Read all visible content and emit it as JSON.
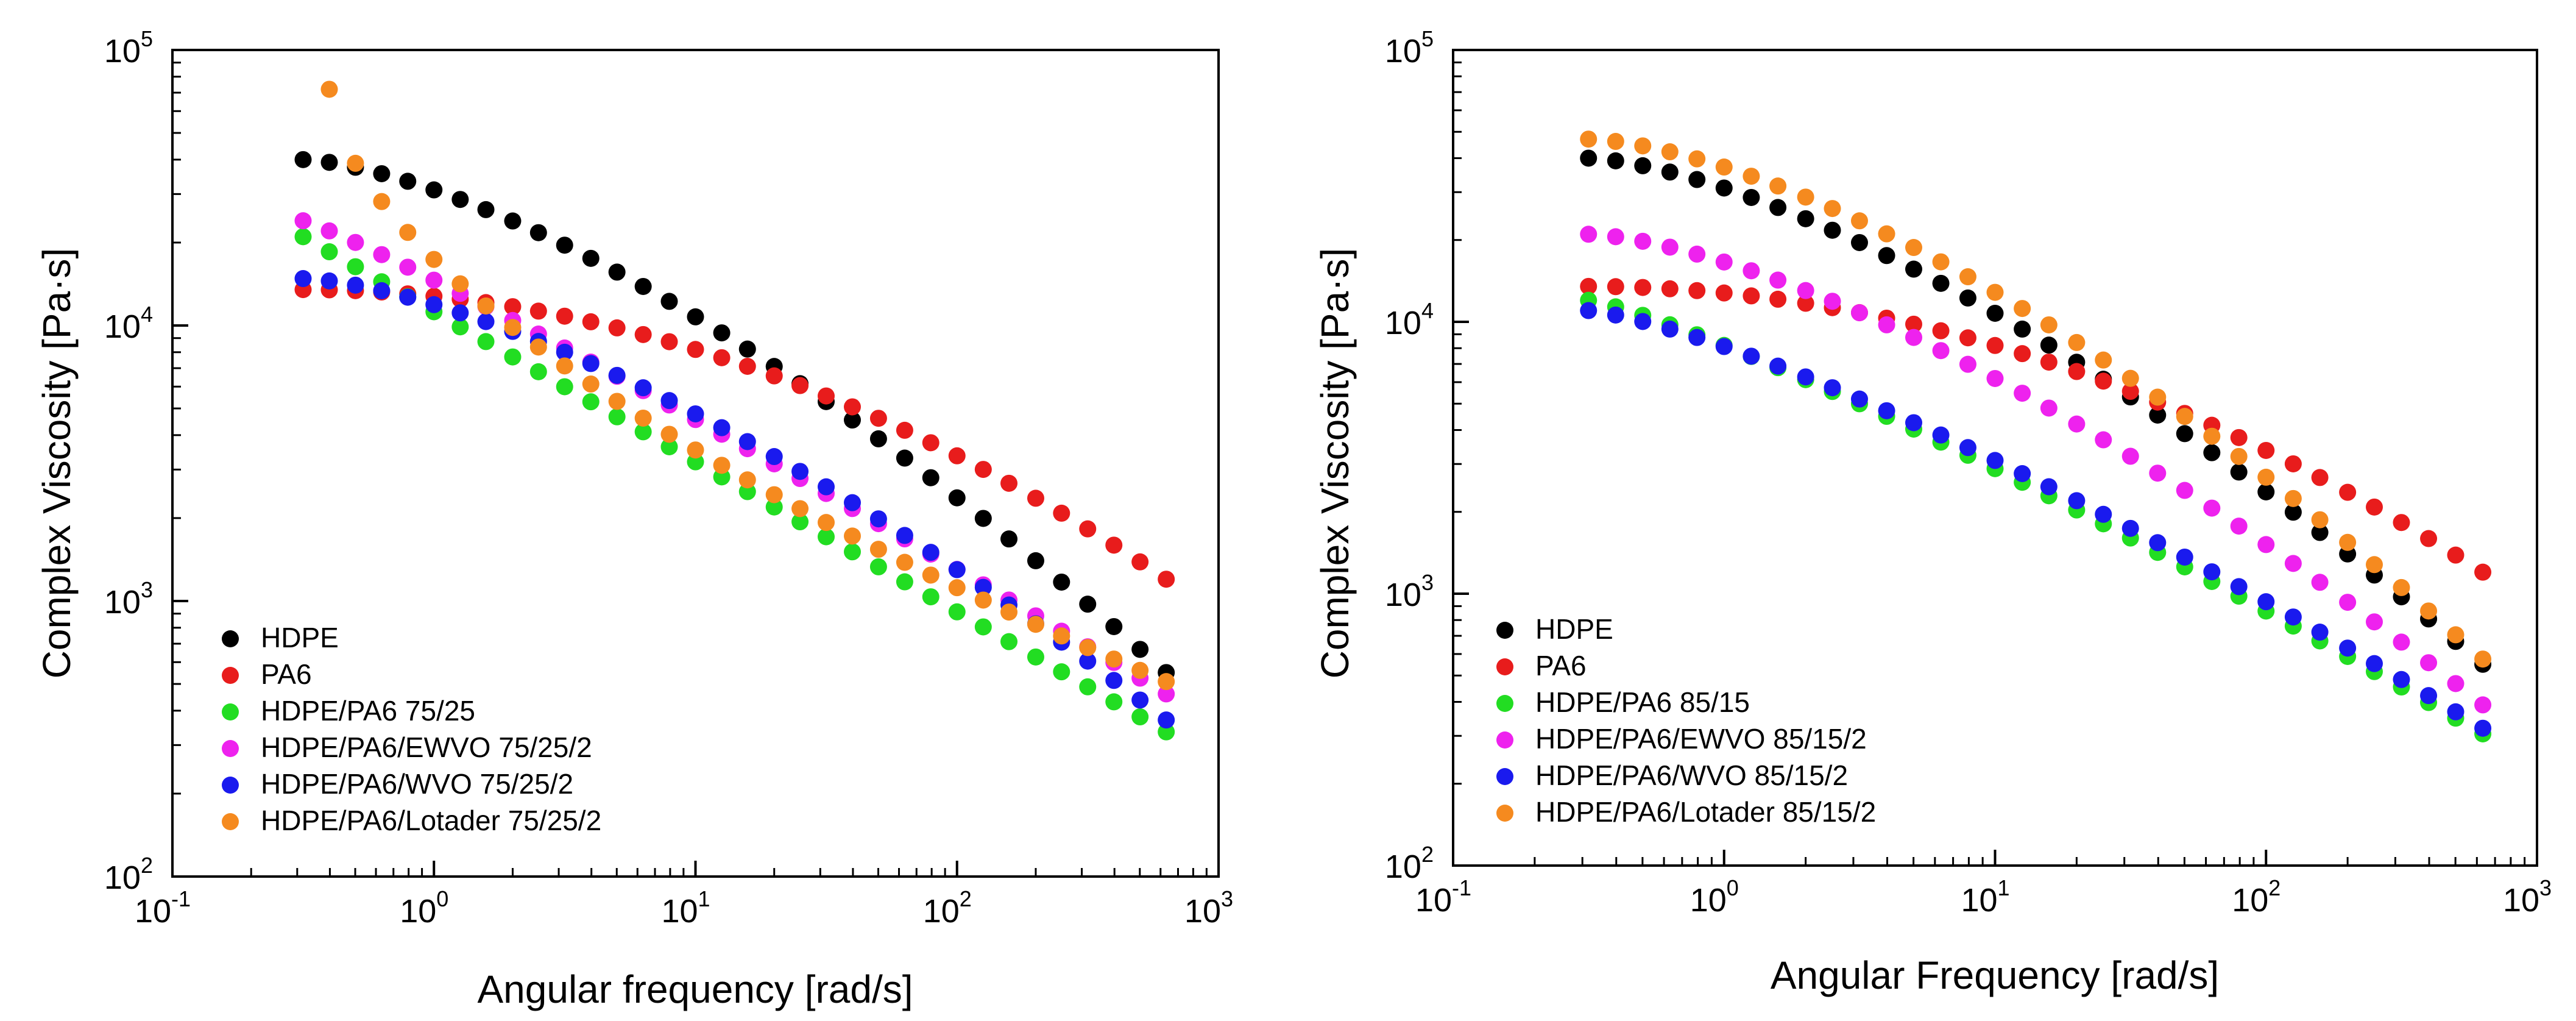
{
  "chart_data": [
    {
      "type": "scatter",
      "xscale": "log",
      "yscale": "log",
      "xlim": [
        0.1,
        1000
      ],
      "ylim": [
        100,
        100000
      ],
      "xlabel": "Angular frequency [rad/s]",
      "ylabel": "Complex Viscosity [Pa·s]",
      "xticks": [
        {
          "base": "10",
          "exp": "-1"
        },
        {
          "base": "10",
          "exp": "0"
        },
        {
          "base": "10",
          "exp": "1"
        },
        {
          "base": "10",
          "exp": "2"
        },
        {
          "base": "10",
          "exp": "3"
        }
      ],
      "yticks": [
        {
          "base": "10",
          "exp": "2"
        },
        {
          "base": "10",
          "exp": "3"
        },
        {
          "base": "10",
          "exp": "4"
        },
        {
          "base": "10",
          "exp": "5"
        }
      ],
      "legend_position": "bottom-left",
      "x": [
        0.316,
        0.398,
        0.501,
        0.631,
        0.794,
        1.0,
        1.26,
        1.58,
        2.0,
        2.51,
        3.16,
        3.98,
        5.01,
        6.31,
        7.94,
        10.0,
        12.6,
        15.8,
        20.0,
        25.1,
        31.6,
        39.8,
        50.1,
        63.1,
        79.4,
        100,
        126,
        158,
        200,
        251,
        316,
        398,
        501,
        631
      ],
      "series": [
        {
          "name": "HDPE",
          "color": "#000000",
          "x_start": 0.316,
          "x_end": 631,
          "y_start": 40000,
          "y_end": 550,
          "exp": 1.5
        },
        {
          "name": "PA6",
          "color": "#e81c1c",
          "x_start": 0.316,
          "x_end": 631,
          "y_start": 13500,
          "y_end": 1200,
          "exp": 2.0
        },
        {
          "name": "HDPE/PA6 75/25",
          "color": "#22dd22",
          "x_start": 0.316,
          "x_end": 631,
          "y_start": 21000,
          "y_end": 335,
          "exp": 1.0
        },
        {
          "name": "HDPE/PA6/EWVO 75/25/2",
          "color": "#ee22ee",
          "x_start": 0.316,
          "x_end": 631,
          "y_start": 24000,
          "y_end": 460,
          "exp": 1.1
        },
        {
          "name": "HDPE/PA6/WVO 75/25/2",
          "color": "#1a1aee",
          "x_start": 0.316,
          "x_end": 631,
          "y_start": 14800,
          "y_end": 370,
          "exp": 1.5
        },
        {
          "name": "HDPE/PA6/Lotader 75/25/2",
          "color": "#f58a1f",
          "x_start": 0.398,
          "x_end": 631,
          "y_start": 72000,
          "y_end": 510,
          "exp": 0.6
        }
      ]
    },
    {
      "type": "scatter",
      "xscale": "log",
      "yscale": "log",
      "xlim": [
        0.1,
        1000
      ],
      "ylim": [
        100,
        100000
      ],
      "xlabel": "Angular Frequency [rad/s]",
      "ylabel": "Complex Viscosity [Pa·s]",
      "xticks": [
        {
          "base": "10",
          "exp": "-1"
        },
        {
          "base": "10",
          "exp": "0"
        },
        {
          "base": "10",
          "exp": "1"
        },
        {
          "base": "10",
          "exp": "2"
        },
        {
          "base": "10",
          "exp": "3"
        }
      ],
      "yticks": [
        {
          "base": "10",
          "exp": "2"
        },
        {
          "base": "10",
          "exp": "3"
        },
        {
          "base": "10",
          "exp": "4"
        },
        {
          "base": "10",
          "exp": "5"
        }
      ],
      "legend_position": "bottom-left",
      "x": [
        0.316,
        0.398,
        0.501,
        0.631,
        0.794,
        1.0,
        1.26,
        1.58,
        2.0,
        2.51,
        3.16,
        3.98,
        5.01,
        6.31,
        7.94,
        10.0,
        12.6,
        15.8,
        20.0,
        25.1,
        31.6,
        39.8,
        50.1,
        63.1,
        79.4,
        100,
        126,
        158,
        200,
        251,
        316,
        398,
        501,
        631
      ],
      "series": [
        {
          "name": "HDPE",
          "color": "#000000",
          "x_start": 0.316,
          "x_end": 631,
          "y_start": 40000,
          "y_end": 550,
          "exp": 1.5
        },
        {
          "name": "PA6",
          "color": "#e81c1c",
          "x_start": 0.316,
          "x_end": 631,
          "y_start": 13500,
          "y_end": 1200,
          "exp": 2.0
        },
        {
          "name": "HDPE/PA6 85/15",
          "color": "#22dd22",
          "x_start": 0.316,
          "x_end": 631,
          "y_start": 12000,
          "y_end": 305,
          "exp": 1.2
        },
        {
          "name": "HDPE/PA6/EWVO 85/15/2",
          "color": "#ee22ee",
          "x_start": 0.316,
          "x_end": 631,
          "y_start": 21000,
          "y_end": 390,
          "exp": 1.5
        },
        {
          "name": "HDPE/PA6/WVO 85/15/2",
          "color": "#1a1aee",
          "x_start": 0.316,
          "x_end": 631,
          "y_start": 11000,
          "y_end": 320,
          "exp": 1.3
        },
        {
          "name": "HDPE/PA6/Lotader 85/15/2",
          "color": "#f58a1f",
          "x_start": 0.316,
          "x_end": 631,
          "y_start": 47000,
          "y_end": 575,
          "exp": 1.55
        }
      ]
    }
  ]
}
